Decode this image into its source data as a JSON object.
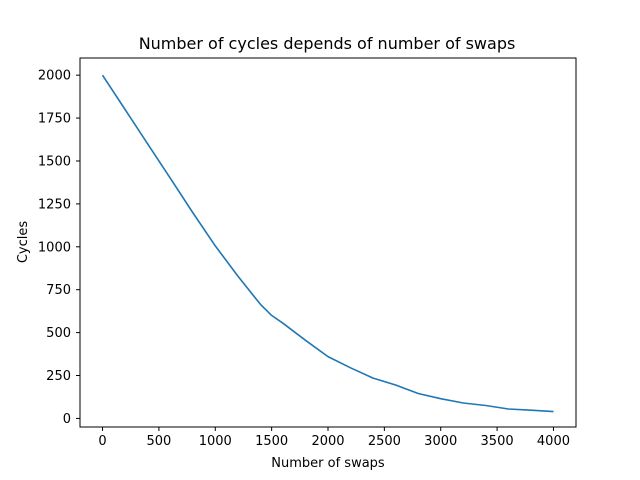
{
  "chart_data": {
    "type": "line",
    "title": "Number of cycles depends of number of swaps",
    "xlabel": "Number of swaps",
    "ylabel": "Cycles",
    "xlim": [
      -200,
      4200
    ],
    "ylim": [
      -50,
      2100
    ],
    "xticks": [
      0,
      500,
      1000,
      1500,
      2000,
      2500,
      3000,
      3500,
      4000
    ],
    "yticks": [
      0,
      250,
      500,
      750,
      1000,
      1250,
      1500,
      1750,
      2000
    ],
    "grid": false,
    "series": [
      {
        "color": "#1f77b4",
        "x": [
          0,
          200,
          400,
          600,
          800,
          1000,
          1200,
          1400,
          1500,
          1600,
          1800,
          2000,
          2200,
          2400,
          2600,
          2800,
          3000,
          3200,
          3400,
          3600,
          3800,
          4000
        ],
        "y": [
          2000,
          1800,
          1600,
          1400,
          1200,
          1005,
          830,
          665,
          600,
          555,
          455,
          360,
          295,
          235,
          195,
          145,
          115,
          90,
          75,
          55,
          48,
          40
        ]
      }
    ]
  }
}
